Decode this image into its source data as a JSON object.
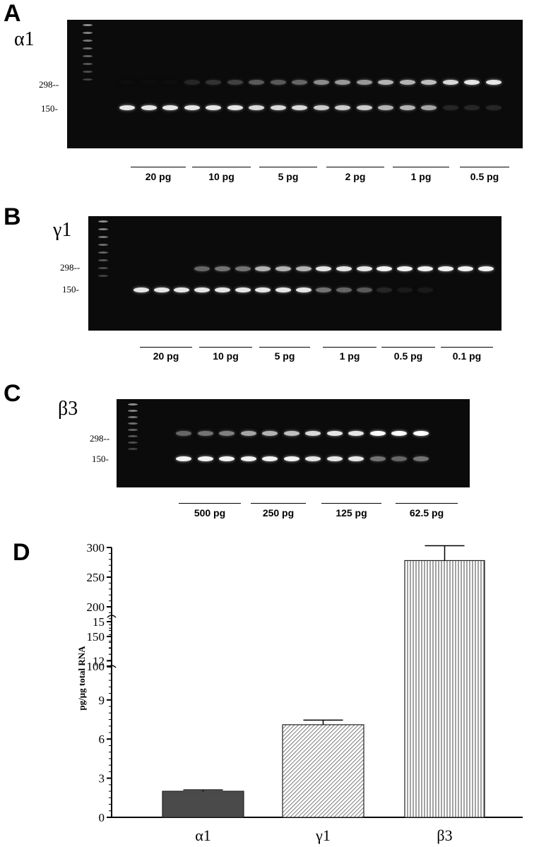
{
  "panels": [
    {
      "letter": "A",
      "gene": "α1",
      "marker_high": "298",
      "marker_low": "150",
      "groups": [
        "20 pg",
        "10 pg",
        "5 pg",
        "2 pg",
        "1 pg",
        "0.5 pg"
      ],
      "upper_band_intensity": [
        0.05,
        0.05,
        0.05,
        0.15,
        0.2,
        0.25,
        0.35,
        0.35,
        0.4,
        0.55,
        0.6,
        0.6,
        0.7,
        0.7,
        0.75,
        0.85,
        0.9,
        0.9
      ],
      "lower_band_intensity": [
        0.9,
        0.9,
        0.9,
        0.9,
        0.9,
        0.9,
        0.85,
        0.85,
        0.85,
        0.8,
        0.8,
        0.8,
        0.7,
        0.7,
        0.65,
        0.15,
        0.15,
        0.15
      ]
    },
    {
      "letter": "B",
      "gene": "γ1",
      "marker_high": "298",
      "marker_low": "150",
      "groups": [
        "20 pg",
        "10 pg",
        "5 pg",
        "1 pg",
        "0.5 pg",
        "0.1 pg"
      ],
      "upper_band_intensity": [
        0.0,
        0.0,
        0.0,
        0.4,
        0.45,
        0.45,
        0.7,
        0.7,
        0.7,
        0.9,
        0.9,
        0.9,
        0.95,
        0.95,
        0.95,
        0.95,
        0.95,
        0.95
      ],
      "lower_band_intensity": [
        0.9,
        0.9,
        0.9,
        0.9,
        0.9,
        0.9,
        0.9,
        0.9,
        0.9,
        0.45,
        0.4,
        0.35,
        0.15,
        0.1,
        0.1,
        0.0,
        0.0,
        0.0
      ]
    },
    {
      "letter": "C",
      "gene": "β3",
      "marker_high": "298",
      "marker_low": "150",
      "groups": [
        "500 pg",
        "250 pg",
        "125 pg",
        "62.5 pg"
      ],
      "upper_band_intensity": [
        0.4,
        0.45,
        0.5,
        0.65,
        0.7,
        0.75,
        0.85,
        0.9,
        0.9,
        1.0,
        1.0,
        1.0
      ],
      "lower_band_intensity": [
        0.95,
        0.95,
        0.95,
        0.95,
        0.95,
        0.95,
        0.9,
        0.9,
        0.9,
        0.45,
        0.4,
        0.45
      ]
    }
  ],
  "chart_letter": "D",
  "chart_data": {
    "type": "bar",
    "categories": [
      "α1",
      "γ1",
      "β3"
    ],
    "values": [
      2.0,
      7.1,
      278
    ],
    "errors": [
      0.1,
      0.35,
      25
    ],
    "patterns": [
      "solid-dark",
      "diagonal-hatch",
      "vertical-hatch"
    ],
    "ylabel": "pg/μg total RNA",
    "axis_break": true,
    "lower_ylim": [
      0,
      15
    ],
    "lower_ticks": [
      "0",
      "3",
      "6",
      "9",
      "12",
      "15"
    ],
    "upper_ylim": [
      100,
      300
    ],
    "upper_ticks": [
      "100",
      "150",
      "200",
      "250",
      "300"
    ]
  }
}
